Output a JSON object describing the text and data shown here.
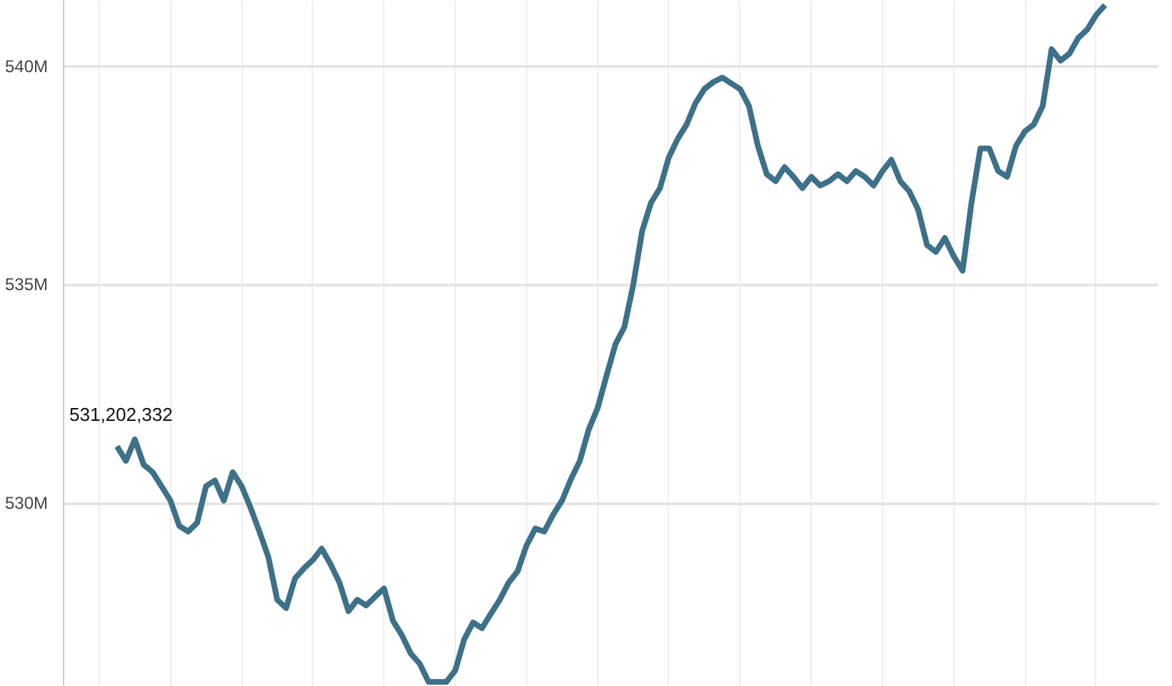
{
  "chart_data": {
    "type": "line",
    "categories": [
      null,
      null,
      null,
      null,
      null,
      null,
      null,
      null,
      null,
      null,
      null,
      null,
      null,
      null,
      null,
      null,
      null,
      null,
      null,
      null,
      null,
      null,
      null,
      null,
      null,
      null,
      null,
      null,
      null,
      null,
      null,
      null,
      null,
      null,
      null,
      null,
      null,
      null,
      null,
      null,
      null,
      null,
      null,
      null,
      null,
      null,
      null,
      null,
      null,
      null,
      null,
      null,
      null,
      null,
      null,
      null,
      null,
      null,
      null,
      null,
      null,
      null,
      null,
      null,
      null,
      null,
      null,
      null,
      null,
      null,
      null,
      null,
      null,
      null,
      null,
      null,
      null,
      null,
      null,
      null,
      null,
      null,
      null,
      null,
      null,
      null,
      null,
      null,
      null,
      null,
      null,
      null,
      null,
      null,
      null,
      null,
      null,
      null,
      null,
      null,
      null,
      null,
      null,
      null,
      null,
      null,
      null,
      null,
      null,
      null,
      null,
      null
    ],
    "series": [
      {
        "color": "#3d7089",
        "values": [
          531.3,
          530.97,
          531.46,
          530.88,
          530.71,
          530.39,
          530.06,
          529.48,
          529.35,
          529.55,
          530.39,
          530.52,
          530.06,
          530.71,
          530.39,
          529.9,
          529.35,
          528.77,
          527.79,
          527.6,
          528.28,
          528.51,
          528.7,
          528.96,
          528.6,
          528.18,
          527.53,
          527.79,
          527.66,
          527.86,
          528.05,
          527.31,
          526.98,
          526.56,
          526.33,
          525.91,
          525.91,
          525.91,
          526.17,
          526.88,
          527.27,
          527.14,
          527.47,
          527.79,
          528.18,
          528.44,
          529.03,
          529.42,
          529.35,
          529.74,
          530.06,
          530.55,
          530.97,
          531.69,
          532.18,
          532.92,
          533.64,
          534.03,
          535.0,
          536.23,
          536.88,
          537.21,
          537.92,
          538.34,
          538.67,
          539.16,
          539.48,
          539.64,
          539.74,
          539.61,
          539.48,
          539.09,
          538.18,
          537.53,
          537.37,
          537.69,
          537.47,
          537.21,
          537.47,
          537.27,
          537.37,
          537.53,
          537.37,
          537.6,
          537.47,
          537.27,
          537.6,
          537.86,
          537.37,
          537.14,
          536.72,
          535.91,
          535.75,
          536.07,
          535.65,
          535.32,
          536.88,
          538.12,
          538.12,
          537.6,
          537.47,
          538.18,
          538.51,
          538.67,
          539.09,
          540.39,
          540.13,
          540.29,
          540.65,
          540.84,
          541.17,
          541.4
        ]
      }
    ],
    "ylim": [
      525.8,
      541.5
    ],
    "yticks": [
      {
        "value": 530,
        "label": "530M"
      },
      {
        "value": 535,
        "label": "535M"
      },
      {
        "value": 540,
        "label": "540M"
      }
    ],
    "annotations": [
      "531,202,332"
    ],
    "grid": true,
    "tick_labels": "y"
  }
}
